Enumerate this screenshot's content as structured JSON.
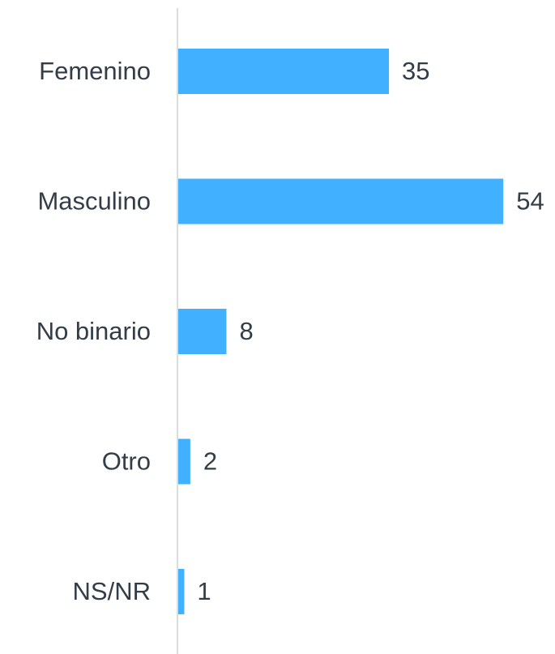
{
  "chart_data": {
    "type": "bar",
    "orientation": "horizontal",
    "categories": [
      "Femenino",
      "Masculino",
      "No binario",
      "Otro",
      "NS/NR"
    ],
    "values": [
      35,
      54,
      8,
      2,
      1
    ],
    "color": "#40b0ff"
  }
}
